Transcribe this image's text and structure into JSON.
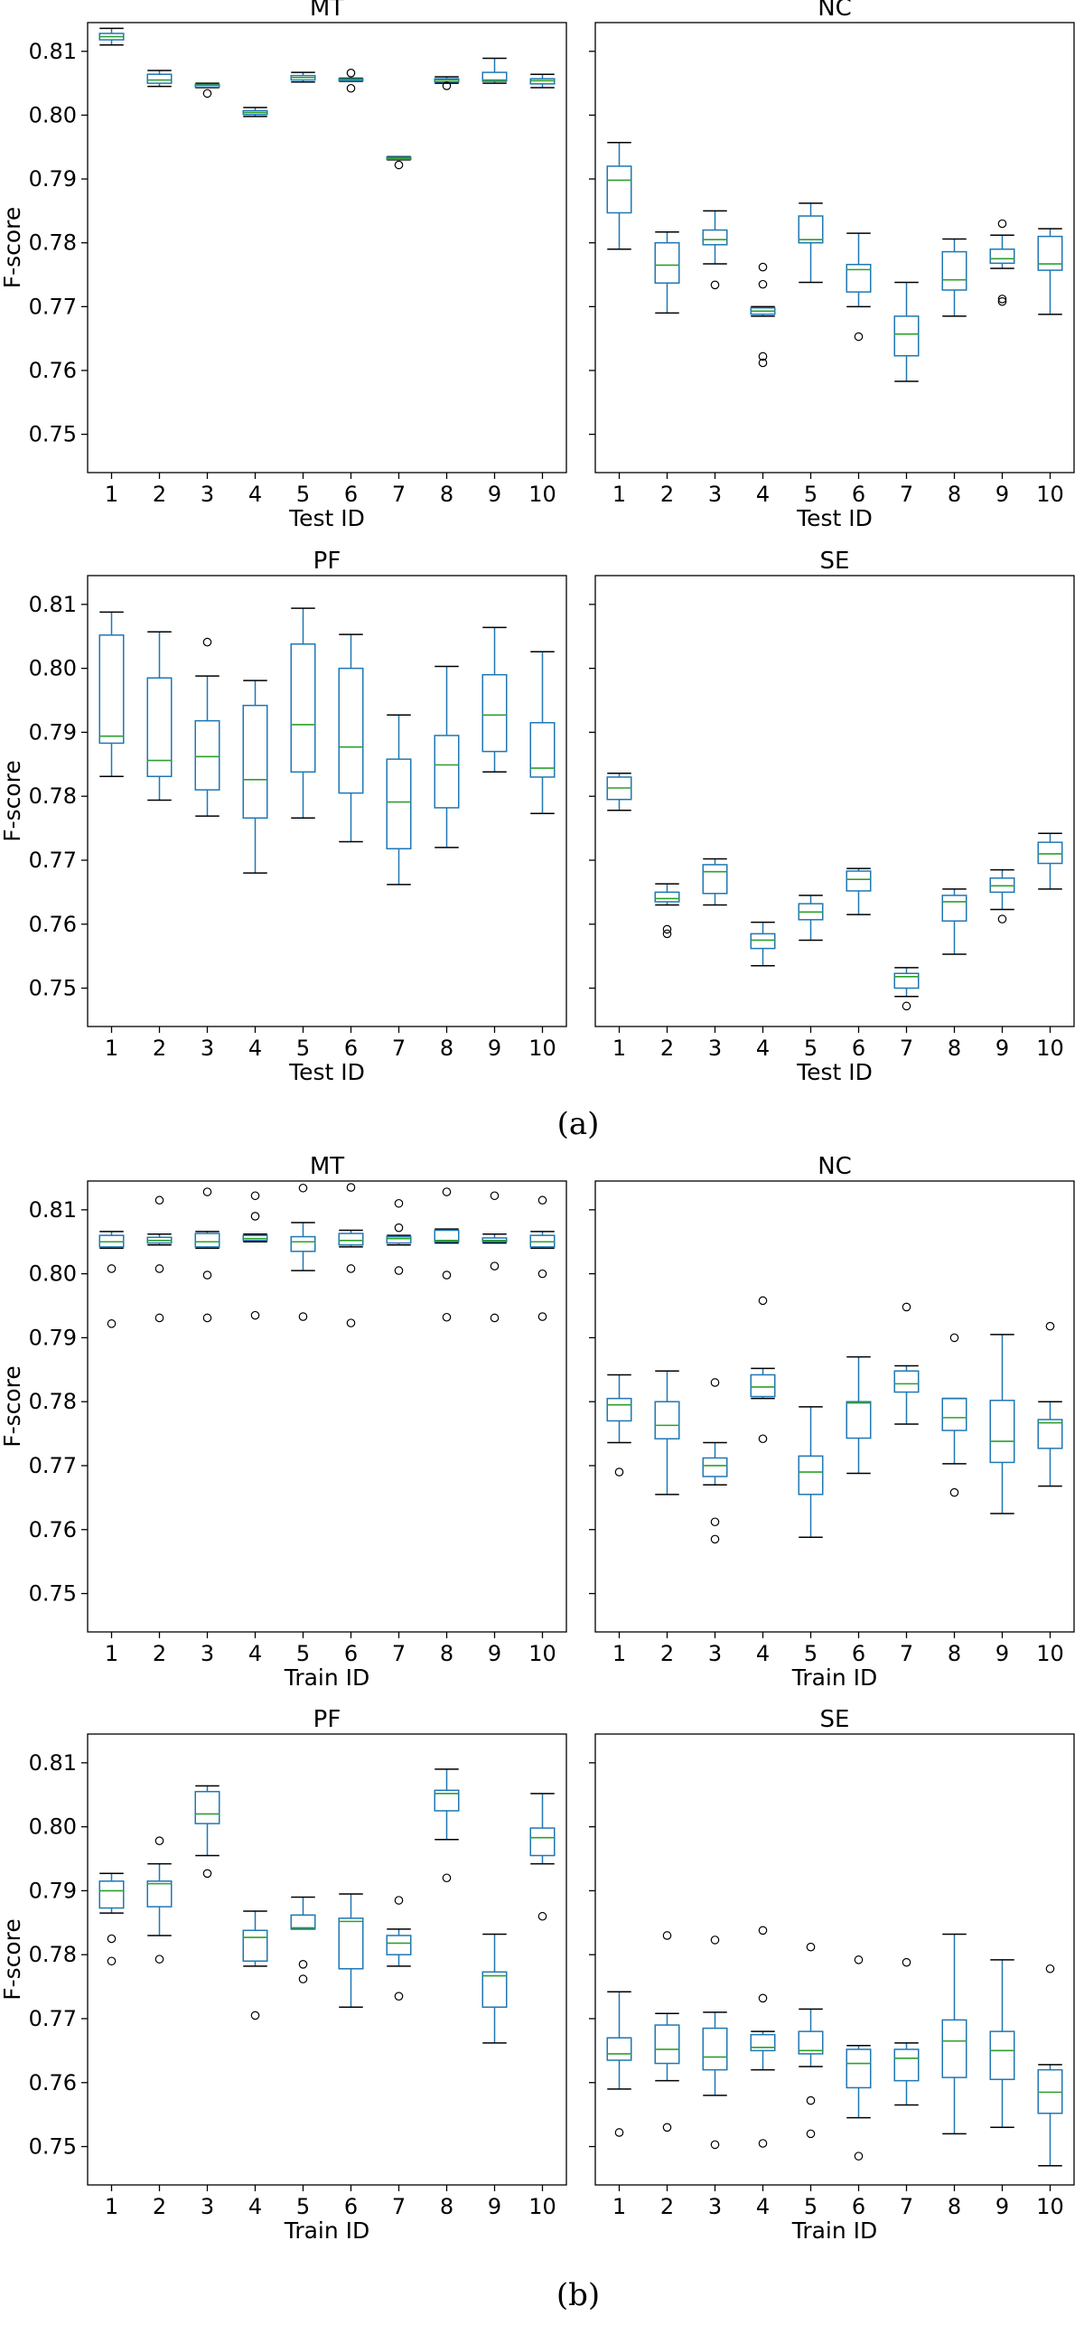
{
  "figure": {
    "captions": [
      "(a)",
      "(b)"
    ],
    "y_axis_ticks": [
      "0.75",
      "0.76",
      "0.77",
      "0.78",
      "0.79",
      "0.80",
      "0.81"
    ],
    "colors": {
      "box": "#1f77b4",
      "median": "#2ca02c",
      "frame": "#000000",
      "outlier": "#000000"
    }
  },
  "chart_data": [
    {
      "type": "box",
      "title": "MT",
      "xlabel": "Test ID",
      "ylabel": "F-score",
      "ylim": [
        0.744,
        0.8145
      ],
      "categories": [
        "1",
        "2",
        "3",
        "4",
        "5",
        "6",
        "7",
        "8",
        "9",
        "10"
      ],
      "boxes": [
        {
          "whislo": 0.811,
          "q1": 0.8118,
          "med": 0.8123,
          "q3": 0.8128,
          "whishi": 0.8136,
          "fliers": []
        },
        {
          "whislo": 0.8045,
          "q1": 0.805,
          "med": 0.8055,
          "q3": 0.8064,
          "whishi": 0.807,
          "fliers": []
        },
        {
          "whislo": 0.8043,
          "q1": 0.8044,
          "med": 0.8047,
          "q3": 0.8048,
          "whishi": 0.805,
          "fliers": [
            0.8034
          ]
        },
        {
          "whislo": 0.7998,
          "q1": 0.8001,
          "med": 0.8004,
          "q3": 0.8007,
          "whishi": 0.8012,
          "fliers": []
        },
        {
          "whislo": 0.8052,
          "q1": 0.8055,
          "med": 0.8059,
          "q3": 0.8062,
          "whishi": 0.8067,
          "fliers": []
        },
        {
          "whislo": 0.8053,
          "q1": 0.8054,
          "med": 0.8056,
          "q3": 0.8057,
          "whishi": 0.8058,
          "fliers": [
            0.8066,
            0.8042
          ]
        },
        {
          "whislo": 0.793,
          "q1": 0.7931,
          "med": 0.7932,
          "q3": 0.7934,
          "whishi": 0.7935,
          "fliers": [
            0.7922
          ]
        },
        {
          "whislo": 0.805,
          "q1": 0.8052,
          "med": 0.8055,
          "q3": 0.8057,
          "whishi": 0.806,
          "fliers": [
            0.8046
          ]
        },
        {
          "whislo": 0.805,
          "q1": 0.8053,
          "med": 0.8055,
          "q3": 0.8067,
          "whishi": 0.8089,
          "fliers": []
        },
        {
          "whislo": 0.8043,
          "q1": 0.8049,
          "med": 0.8054,
          "q3": 0.8057,
          "whishi": 0.8064,
          "fliers": []
        }
      ]
    },
    {
      "type": "box",
      "title": "NC",
      "xlabel": "Test ID",
      "ylabel": "",
      "ylim": [
        0.744,
        0.8145
      ],
      "categories": [
        "1",
        "2",
        "3",
        "4",
        "5",
        "6",
        "7",
        "8",
        "9",
        "10"
      ],
      "boxes": [
        {
          "whislo": 0.779,
          "q1": 0.7847,
          "med": 0.7898,
          "q3": 0.792,
          "whishi": 0.7957,
          "fliers": []
        },
        {
          "whislo": 0.769,
          "q1": 0.7737,
          "med": 0.7765,
          "q3": 0.78,
          "whishi": 0.7817,
          "fliers": []
        },
        {
          "whislo": 0.7767,
          "q1": 0.7797,
          "med": 0.7805,
          "q3": 0.782,
          "whishi": 0.785,
          "fliers": [
            0.7734
          ]
        },
        {
          "whislo": 0.7685,
          "q1": 0.7688,
          "med": 0.7693,
          "q3": 0.7698,
          "whishi": 0.77,
          "fliers": [
            0.7762,
            0.7735,
            0.7622,
            0.7612
          ]
        },
        {
          "whislo": 0.7738,
          "q1": 0.78,
          "med": 0.7805,
          "q3": 0.7842,
          "whishi": 0.7862,
          "fliers": []
        },
        {
          "whislo": 0.77,
          "q1": 0.7723,
          "med": 0.7758,
          "q3": 0.7766,
          "whishi": 0.7815,
          "fliers": [
            0.7653
          ]
        },
        {
          "whislo": 0.7583,
          "q1": 0.7623,
          "med": 0.7657,
          "q3": 0.7685,
          "whishi": 0.7738,
          "fliers": []
        },
        {
          "whislo": 0.7685,
          "q1": 0.7726,
          "med": 0.7742,
          "q3": 0.7786,
          "whishi": 0.7806,
          "fliers": []
        },
        {
          "whislo": 0.776,
          "q1": 0.7768,
          "med": 0.7775,
          "q3": 0.779,
          "whishi": 0.7812,
          "fliers": [
            0.783,
            0.7712,
            0.7708
          ]
        },
        {
          "whislo": 0.7688,
          "q1": 0.7757,
          "med": 0.7767,
          "q3": 0.781,
          "whishi": 0.7822,
          "fliers": []
        }
      ]
    },
    {
      "type": "box",
      "title": "PF",
      "xlabel": "Test ID",
      "ylabel": "F-score",
      "ylim": [
        0.744,
        0.8145
      ],
      "categories": [
        "1",
        "2",
        "3",
        "4",
        "5",
        "6",
        "7",
        "8",
        "9",
        "10"
      ],
      "boxes": [
        {
          "whislo": 0.7831,
          "q1": 0.7883,
          "med": 0.7894,
          "q3": 0.8052,
          "whishi": 0.8088,
          "fliers": []
        },
        {
          "whislo": 0.7794,
          "q1": 0.7831,
          "med": 0.7856,
          "q3": 0.7985,
          "whishi": 0.8057,
          "fliers": []
        },
        {
          "whislo": 0.7769,
          "q1": 0.781,
          "med": 0.7862,
          "q3": 0.7918,
          "whishi": 0.7988,
          "fliers": [
            0.8041
          ]
        },
        {
          "whislo": 0.768,
          "q1": 0.7766,
          "med": 0.7826,
          "q3": 0.7942,
          "whishi": 0.7981,
          "fliers": []
        },
        {
          "whislo": 0.7766,
          "q1": 0.7838,
          "med": 0.7912,
          "q3": 0.8038,
          "whishi": 0.8094,
          "fliers": []
        },
        {
          "whislo": 0.7729,
          "q1": 0.7805,
          "med": 0.7877,
          "q3": 0.8,
          "whishi": 0.8053,
          "fliers": []
        },
        {
          "whislo": 0.7662,
          "q1": 0.7718,
          "med": 0.7791,
          "q3": 0.7858,
          "whishi": 0.7927,
          "fliers": []
        },
        {
          "whislo": 0.772,
          "q1": 0.7782,
          "med": 0.7849,
          "q3": 0.7895,
          "whishi": 0.8003,
          "fliers": []
        },
        {
          "whislo": 0.7838,
          "q1": 0.787,
          "med": 0.7927,
          "q3": 0.799,
          "whishi": 0.8064,
          "fliers": []
        },
        {
          "whislo": 0.7773,
          "q1": 0.783,
          "med": 0.7844,
          "q3": 0.7915,
          "whishi": 0.8026,
          "fliers": []
        }
      ]
    },
    {
      "type": "box",
      "title": "SE",
      "xlabel": "Test ID",
      "ylabel": "",
      "ylim": [
        0.744,
        0.8145
      ],
      "categories": [
        "1",
        "2",
        "3",
        "4",
        "5",
        "6",
        "7",
        "8",
        "9",
        "10"
      ],
      "boxes": [
        {
          "whislo": 0.7778,
          "q1": 0.7795,
          "med": 0.7813,
          "q3": 0.783,
          "whishi": 0.7836,
          "fliers": []
        },
        {
          "whislo": 0.763,
          "q1": 0.7635,
          "med": 0.764,
          "q3": 0.765,
          "whishi": 0.7663,
          "fliers": [
            0.7592,
            0.7585
          ]
        },
        {
          "whislo": 0.763,
          "q1": 0.7648,
          "med": 0.7682,
          "q3": 0.7693,
          "whishi": 0.7702,
          "fliers": []
        },
        {
          "whislo": 0.7535,
          "q1": 0.7562,
          "med": 0.7575,
          "q3": 0.7585,
          "whishi": 0.7603,
          "fliers": []
        },
        {
          "whislo": 0.7575,
          "q1": 0.7607,
          "med": 0.7619,
          "q3": 0.7632,
          "whishi": 0.7645,
          "fliers": []
        },
        {
          "whislo": 0.7615,
          "q1": 0.7652,
          "med": 0.767,
          "q3": 0.7683,
          "whishi": 0.7687,
          "fliers": []
        },
        {
          "whislo": 0.7487,
          "q1": 0.75,
          "med": 0.7518,
          "q3": 0.7523,
          "whishi": 0.7532,
          "fliers": [
            0.7472
          ]
        },
        {
          "whislo": 0.7553,
          "q1": 0.7605,
          "med": 0.7635,
          "q3": 0.7645,
          "whishi": 0.7655,
          "fliers": []
        },
        {
          "whislo": 0.7623,
          "q1": 0.765,
          "med": 0.766,
          "q3": 0.7672,
          "whishi": 0.7685,
          "fliers": [
            0.7608
          ]
        },
        {
          "whislo": 0.7655,
          "q1": 0.7695,
          "med": 0.771,
          "q3": 0.7728,
          "whishi": 0.7742,
          "fliers": []
        }
      ]
    },
    {
      "type": "box",
      "title": "MT",
      "xlabel": "Train ID",
      "ylabel": "F-score",
      "ylim": [
        0.744,
        0.8145
      ],
      "categories": [
        "1",
        "2",
        "3",
        "4",
        "5",
        "6",
        "7",
        "8",
        "9",
        "10"
      ],
      "boxes": [
        {
          "whislo": 0.804,
          "q1": 0.8042,
          "med": 0.805,
          "q3": 0.806,
          "whishi": 0.8066,
          "fliers": [
            0.8008,
            0.7922
          ]
        },
        {
          "whislo": 0.8045,
          "q1": 0.8048,
          "med": 0.8052,
          "q3": 0.8057,
          "whishi": 0.8062,
          "fliers": [
            0.8115,
            0.8008,
            0.7931
          ]
        },
        {
          "whislo": 0.804,
          "q1": 0.8042,
          "med": 0.805,
          "q3": 0.8063,
          "whishi": 0.8066,
          "fliers": [
            0.8128,
            0.7998,
            0.7931
          ]
        },
        {
          "whislo": 0.805,
          "q1": 0.8052,
          "med": 0.8055,
          "q3": 0.806,
          "whishi": 0.8062,
          "fliers": [
            0.8122,
            0.809,
            0.7935
          ]
        },
        {
          "whislo": 0.8005,
          "q1": 0.8035,
          "med": 0.805,
          "q3": 0.8058,
          "whishi": 0.808,
          "fliers": [
            0.8134,
            0.7933
          ]
        },
        {
          "whislo": 0.8042,
          "q1": 0.8045,
          "med": 0.8052,
          "q3": 0.8063,
          "whishi": 0.8068,
          "fliers": [
            0.8135,
            0.8008,
            0.7923
          ]
        },
        {
          "whislo": 0.8045,
          "q1": 0.8048,
          "med": 0.8055,
          "q3": 0.8058,
          "whishi": 0.806,
          "fliers": [
            0.811,
            0.8072,
            0.8005
          ]
        },
        {
          "whislo": 0.8048,
          "q1": 0.805,
          "med": 0.8052,
          "q3": 0.8068,
          "whishi": 0.807,
          "fliers": [
            0.8128,
            0.7998,
            0.7932
          ]
        },
        {
          "whislo": 0.8048,
          "q1": 0.805,
          "med": 0.8052,
          "q3": 0.8056,
          "whishi": 0.8062,
          "fliers": [
            0.8122,
            0.8012,
            0.7931
          ]
        },
        {
          "whislo": 0.804,
          "q1": 0.8042,
          "med": 0.805,
          "q3": 0.806,
          "whishi": 0.8066,
          "fliers": [
            0.8115,
            0.8,
            0.7933
          ]
        }
      ]
    },
    {
      "type": "box",
      "title": "NC",
      "xlabel": "Train ID",
      "ylabel": "",
      "ylim": [
        0.744,
        0.8145
      ],
      "categories": [
        "1",
        "2",
        "3",
        "4",
        "5",
        "6",
        "7",
        "8",
        "9",
        "10"
      ],
      "boxes": [
        {
          "whislo": 0.7736,
          "q1": 0.777,
          "med": 0.7795,
          "q3": 0.7805,
          "whishi": 0.7842,
          "fliers": [
            0.769
          ]
        },
        {
          "whislo": 0.7655,
          "q1": 0.7742,
          "med": 0.7763,
          "q3": 0.78,
          "whishi": 0.7848,
          "fliers": []
        },
        {
          "whislo": 0.767,
          "q1": 0.7683,
          "med": 0.77,
          "q3": 0.7712,
          "whishi": 0.7736,
          "fliers": [
            0.783,
            0.7612,
            0.7585
          ]
        },
        {
          "whislo": 0.7805,
          "q1": 0.7808,
          "med": 0.7823,
          "q3": 0.7842,
          "whishi": 0.7852,
          "fliers": [
            0.7958,
            0.7742
          ]
        },
        {
          "whislo": 0.7588,
          "q1": 0.7655,
          "med": 0.769,
          "q3": 0.7715,
          "whishi": 0.7792,
          "fliers": []
        },
        {
          "whislo": 0.7688,
          "q1": 0.7743,
          "med": 0.7798,
          "q3": 0.78,
          "whishi": 0.787,
          "fliers": []
        },
        {
          "whislo": 0.7765,
          "q1": 0.7815,
          "med": 0.7828,
          "q3": 0.7848,
          "whishi": 0.7856,
          "fliers": [
            0.7948
          ]
        },
        {
          "whislo": 0.7703,
          "q1": 0.7755,
          "med": 0.7775,
          "q3": 0.7805,
          "whishi": 0.7805,
          "fliers": [
            0.79,
            0.7658
          ]
        },
        {
          "whislo": 0.7625,
          "q1": 0.7705,
          "med": 0.7738,
          "q3": 0.7802,
          "whishi": 0.7905,
          "fliers": []
        },
        {
          "whislo": 0.7668,
          "q1": 0.7727,
          "med": 0.7767,
          "q3": 0.7772,
          "whishi": 0.78,
          "fliers": [
            0.7918
          ]
        }
      ]
    },
    {
      "type": "box",
      "title": "PF",
      "xlabel": "Train ID",
      "ylabel": "F-score",
      "ylim": [
        0.744,
        0.8145
      ],
      "categories": [
        "1",
        "2",
        "3",
        "4",
        "5",
        "6",
        "7",
        "8",
        "9",
        "10"
      ],
      "boxes": [
        {
          "whislo": 0.7865,
          "q1": 0.7873,
          "med": 0.79,
          "q3": 0.7915,
          "whishi": 0.7927,
          "fliers": [
            0.7825,
            0.779
          ]
        },
        {
          "whislo": 0.783,
          "q1": 0.7875,
          "med": 0.7911,
          "q3": 0.7915,
          "whishi": 0.7942,
          "fliers": [
            0.7978,
            0.7793
          ]
        },
        {
          "whislo": 0.7955,
          "q1": 0.8005,
          "med": 0.802,
          "q3": 0.8055,
          "whishi": 0.8064,
          "fliers": [
            0.7927
          ]
        },
        {
          "whislo": 0.7782,
          "q1": 0.779,
          "med": 0.7827,
          "q3": 0.7838,
          "whishi": 0.7868,
          "fliers": [
            0.7705
          ]
        },
        {
          "whislo": 0.784,
          "q1": 0.784,
          "med": 0.7842,
          "q3": 0.7862,
          "whishi": 0.789,
          "fliers": [
            0.7785,
            0.7762
          ]
        },
        {
          "whislo": 0.7718,
          "q1": 0.7778,
          "med": 0.7852,
          "q3": 0.7857,
          "whishi": 0.7895,
          "fliers": []
        },
        {
          "whislo": 0.7782,
          "q1": 0.78,
          "med": 0.7818,
          "q3": 0.783,
          "whishi": 0.784,
          "fliers": [
            0.7885,
            0.7735
          ]
        },
        {
          "whislo": 0.798,
          "q1": 0.8025,
          "med": 0.8052,
          "q3": 0.8057,
          "whishi": 0.809,
          "fliers": [
            0.792
          ]
        },
        {
          "whislo": 0.7662,
          "q1": 0.7718,
          "med": 0.7767,
          "q3": 0.7773,
          "whishi": 0.7832,
          "fliers": []
        },
        {
          "whislo": 0.7942,
          "q1": 0.7955,
          "med": 0.7983,
          "q3": 0.7998,
          "whishi": 0.8052,
          "fliers": [
            0.786
          ]
        }
      ]
    },
    {
      "type": "box",
      "title": "SE",
      "xlabel": "Train ID",
      "ylabel": "",
      "ylim": [
        0.744,
        0.8145
      ],
      "categories": [
        "1",
        "2",
        "3",
        "4",
        "5",
        "6",
        "7",
        "8",
        "9",
        "10"
      ],
      "boxes": [
        {
          "whislo": 0.759,
          "q1": 0.7635,
          "med": 0.7645,
          "q3": 0.767,
          "whishi": 0.7742,
          "fliers": [
            0.7522
          ]
        },
        {
          "whislo": 0.7603,
          "q1": 0.763,
          "med": 0.7652,
          "q3": 0.769,
          "whishi": 0.7708,
          "fliers": [
            0.783,
            0.753
          ]
        },
        {
          "whislo": 0.758,
          "q1": 0.762,
          "med": 0.764,
          "q3": 0.7685,
          "whishi": 0.771,
          "fliers": [
            0.7823,
            0.7503
          ]
        },
        {
          "whislo": 0.762,
          "q1": 0.765,
          "med": 0.7655,
          "q3": 0.7675,
          "whishi": 0.768,
          "fliers": [
            0.7838,
            0.7732,
            0.7505
          ]
        },
        {
          "whislo": 0.7625,
          "q1": 0.7645,
          "med": 0.765,
          "q3": 0.768,
          "whishi": 0.7715,
          "fliers": [
            0.7812,
            0.7572,
            0.752
          ]
        },
        {
          "whislo": 0.7545,
          "q1": 0.7592,
          "med": 0.763,
          "q3": 0.7652,
          "whishi": 0.7658,
          "fliers": [
            0.7792,
            0.7485
          ]
        },
        {
          "whislo": 0.7565,
          "q1": 0.7603,
          "med": 0.7638,
          "q3": 0.7652,
          "whishi": 0.7662,
          "fliers": [
            0.7788
          ]
        },
        {
          "whislo": 0.752,
          "q1": 0.7608,
          "med": 0.7665,
          "q3": 0.7698,
          "whishi": 0.7832,
          "fliers": []
        },
        {
          "whislo": 0.753,
          "q1": 0.7605,
          "med": 0.765,
          "q3": 0.768,
          "whishi": 0.7792,
          "fliers": []
        },
        {
          "whislo": 0.747,
          "q1": 0.7552,
          "med": 0.7585,
          "q3": 0.762,
          "whishi": 0.7628,
          "fliers": [
            0.7778
          ]
        }
      ]
    }
  ]
}
